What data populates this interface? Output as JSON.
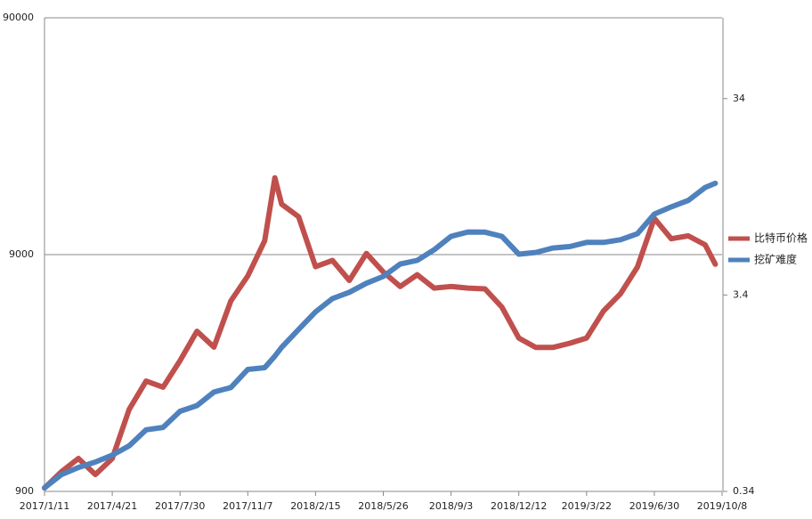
{
  "chart_data": {
    "type": "line",
    "x": [
      "2017/1/11",
      "2017/2/5",
      "2017/3/2",
      "2017/3/27",
      "2017/4/21",
      "2017/5/16",
      "2017/6/10",
      "2017/7/5",
      "2017/7/30",
      "2017/8/24",
      "2017/9/18",
      "2017/10/13",
      "2017/11/7",
      "2017/12/2",
      "2017/12/17",
      "2017/12/27",
      "2018/1/21",
      "2018/2/15",
      "2018/3/12",
      "2018/4/6",
      "2018/5/1",
      "2018/5/26",
      "2018/6/20",
      "2018/7/15",
      "2018/8/9",
      "2018/9/3",
      "2018/9/28",
      "2018/10/23",
      "2018/11/17",
      "2018/12/12",
      "2019/1/6",
      "2019/1/31",
      "2019/2/25",
      "2019/3/22",
      "2019/4/16",
      "2019/5/11",
      "2019/6/5",
      "2019/6/30",
      "2019/7/25",
      "2019/8/19",
      "2019/9/13",
      "2019/9/28"
    ],
    "series": [
      {
        "name": "比特币价格",
        "color": "#c0504d",
        "values": [
          930,
          1090,
          1240,
          1060,
          1240,
          2000,
          2630,
          2480,
          3210,
          4270,
          3660,
          5740,
          7310,
          10300,
          19000,
          14700,
          13000,
          8000,
          8500,
          7000,
          9100,
          7600,
          6600,
          7400,
          6500,
          6600,
          6500,
          6450,
          5400,
          4000,
          3650,
          3650,
          3800,
          4000,
          5200,
          6150,
          7970,
          12800,
          10500,
          10800,
          9900,
          8200
        ]
      },
      {
        "name": "挖矿难度",
        "color": "#4f81bd",
        "axis": "y2",
        "values": [
          0.355,
          0.414,
          0.45,
          0.48,
          0.52,
          0.58,
          0.7,
          0.72,
          0.87,
          0.93,
          1.09,
          1.15,
          1.42,
          1.45,
          1.66,
          1.84,
          2.27,
          2.79,
          3.26,
          3.51,
          3.9,
          4.23,
          4.89,
          5.1,
          5.78,
          6.76,
          7.12,
          7.1,
          6.76,
          5.49,
          5.6,
          5.9,
          6.0,
          6.3,
          6.3,
          6.5,
          6.97,
          8.78,
          9.55,
          10.3,
          12.0,
          12.6
        ]
      }
    ],
    "xlim": [
      "2017/1/11",
      "2019/10/8"
    ],
    "xticks": [
      "2017/1/11",
      "2017/4/21",
      "2017/7/30",
      "2017/11/7",
      "2018/2/15",
      "2018/5/26",
      "2018/9/3",
      "2018/12/12",
      "2019/3/22",
      "2019/6/30",
      "2019/10/8"
    ],
    "ylim": [
      900,
      90000
    ],
    "yticks": [
      900,
      9000,
      90000
    ],
    "y2lim": [
      0.34,
      87.7
    ],
    "y2ticks": [
      0.34,
      3.4,
      34
    ],
    "log_scale": true,
    "grid": true,
    "legend": "right"
  }
}
